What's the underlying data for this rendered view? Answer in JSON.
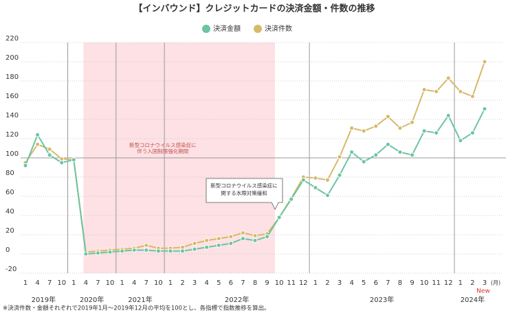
{
  "chart_data": {
    "type": "line",
    "title": "【インバウンド】クレジットカードの決済金額・件数の推移",
    "groups": [
      {
        "label": "2019年",
        "categories": [
          "1",
          "4",
          "7",
          "10"
        ]
      },
      {
        "label": "2020年",
        "categories": [
          "1",
          "4",
          "7",
          "10"
        ]
      },
      {
        "label": "2021年",
        "categories": [
          "1",
          "4",
          "7",
          "10"
        ]
      },
      {
        "label": "2022年",
        "categories": [
          "1",
          "2",
          "3",
          "4",
          "5",
          "6",
          "7",
          "8",
          "9",
          "10",
          "11",
          "12"
        ]
      },
      {
        "label": "2023年",
        "categories": [
          "1",
          "2",
          "3",
          "4",
          "5",
          "6",
          "7",
          "8",
          "9",
          "10",
          "11",
          "12"
        ]
      },
      {
        "label": "2024年",
        "categories": [
          "1",
          "2",
          "3"
        ]
      }
    ],
    "x_unit": "(月)",
    "new_label": "New",
    "series": [
      {
        "name": "決済金額",
        "color": "#6cc4a0",
        "values": [
          92,
          124,
          103,
          95,
          98,
          0,
          1,
          2,
          3,
          4,
          4,
          3,
          3,
          3,
          5,
          7,
          9,
          11,
          16,
          14,
          18,
          38,
          57,
          77,
          69,
          61,
          82,
          106,
          96,
          103,
          114,
          106,
          103,
          128,
          126,
          144,
          118,
          126,
          151
        ]
      },
      {
        "name": "決済件数",
        "color": "#d6b96a",
        "values": [
          95,
          114,
          109,
          99,
          98,
          2,
          3,
          4,
          5,
          6,
          9,
          6,
          6,
          7,
          11,
          14,
          16,
          18,
          22,
          19,
          21,
          38,
          58,
          80,
          79,
          77,
          101,
          131,
          128,
          133,
          143,
          131,
          137,
          171,
          169,
          183,
          169,
          164,
          200
        ]
      }
    ],
    "ylim": [
      -20,
      220
    ],
    "yticks": [
      -20,
      0,
      20,
      40,
      60,
      80,
      100,
      120,
      140,
      160,
      180,
      200,
      220
    ],
    "reference_line": 100,
    "grid": true,
    "legend": "top",
    "shaded_period": {
      "start": 5,
      "end": 20,
      "color": "#fde1e4",
      "text": [
        "新型コロナウイルス感染症に",
        "伴う入国制限強化期間"
      ]
    },
    "callout": {
      "at": 21,
      "text": [
        "新型コロナウイルス感染症に",
        "関する水際対策緩和"
      ]
    },
    "footnote": "※決済件数・金額それぞれで2019年1月～2019年12月の平均を100とし、各指標で指数推移を算出。"
  }
}
